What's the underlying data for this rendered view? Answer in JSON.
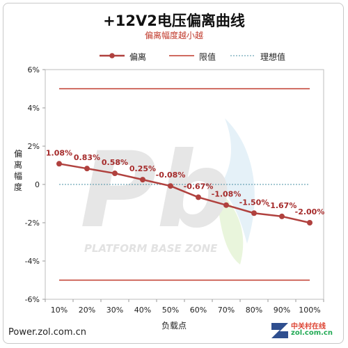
{
  "title": "+12V2电压偏离曲线",
  "subtitle": "偏离幅度越小越",
  "footer": "Power.zol.com.cn",
  "watermark": {
    "text": "PLATFORM BASE ZONE"
  },
  "brand": {
    "name": "中关村在线",
    "url": "zol.com.cn"
  },
  "colors": {
    "series": "#b0413e",
    "limit": "#c0392b",
    "ideal": "#4a90a4",
    "label": "#a52a2a"
  },
  "chart_data": {
    "type": "line",
    "categories": [
      "10%",
      "20%",
      "30%",
      "40%",
      "50%",
      "60%",
      "70%",
      "80%",
      "90%",
      "100%"
    ],
    "xlabel": "负载点",
    "ylabel": "偏离幅度",
    "ylim": [
      -6,
      6
    ],
    "yticks": [
      6,
      4,
      2,
      0,
      -2,
      -4,
      -6
    ],
    "ytick_labels": [
      "6%",
      "4%",
      "2%",
      "0",
      "-2%",
      "-4%",
      "-6%"
    ],
    "legend": [
      "偏离",
      "限值",
      "理想值"
    ],
    "legend_position": "top",
    "grid": false,
    "series": [
      {
        "name": "偏离",
        "values": [
          1.08,
          0.83,
          0.58,
          0.25,
          -0.08,
          -0.67,
          -1.08,
          -1.5,
          -1.67,
          -2.0
        ],
        "labels": [
          "1.08%",
          "0.83%",
          "0.58%",
          "0.25%",
          "-0.08%",
          "-0.67%",
          "-1.08%",
          "-1.50%",
          "-1.67%",
          "-2.00%"
        ]
      }
    ],
    "limits": [
      5,
      -5
    ],
    "ideal": 0
  }
}
